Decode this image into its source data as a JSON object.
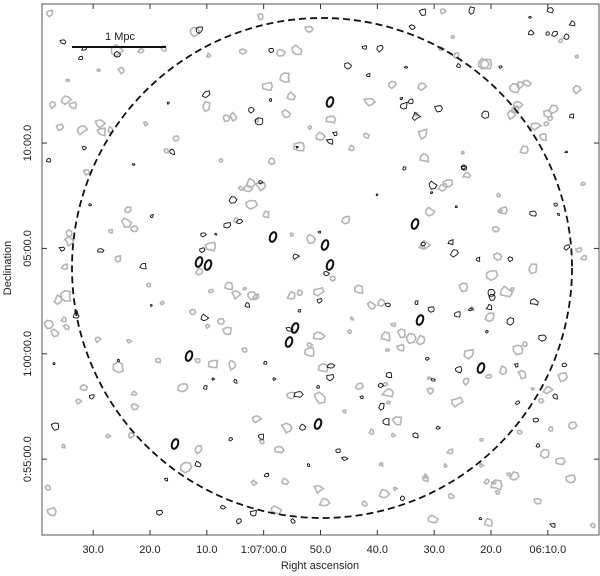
{
  "chart_data": {
    "type": "contour",
    "xlabel": "Right ascension",
    "ylabel": "Declination",
    "scale_bar": "1 Mpc",
    "xlim": [
      4059,
      3961
    ],
    "xticks": [
      {
        "value": 4050,
        "label": "30.0"
      },
      {
        "value": 4040,
        "label": "20.0"
      },
      {
        "value": 4030,
        "label": "10.0"
      },
      {
        "value": 4020,
        "label": "1:07:00.0"
      },
      {
        "value": 4010,
        "label": "50.0"
      },
      {
        "value": 4000,
        "label": "40.0"
      },
      {
        "value": 3990,
        "label": "30.0"
      },
      {
        "value": 3980,
        "label": "20.0"
      },
      {
        "value": 3970,
        "label": "06:10.0"
      }
    ],
    "ylim": [
      51.4,
      76.6
    ],
    "yticks": [
      {
        "value": 55,
        "label": "0:55:00.0"
      },
      {
        "value": 60,
        "label": "1:00:00.0"
      },
      {
        "value": 65,
        "label": "05:00.0"
      },
      {
        "value": 70,
        "label": "10:00.0"
      }
    ]
  }
}
